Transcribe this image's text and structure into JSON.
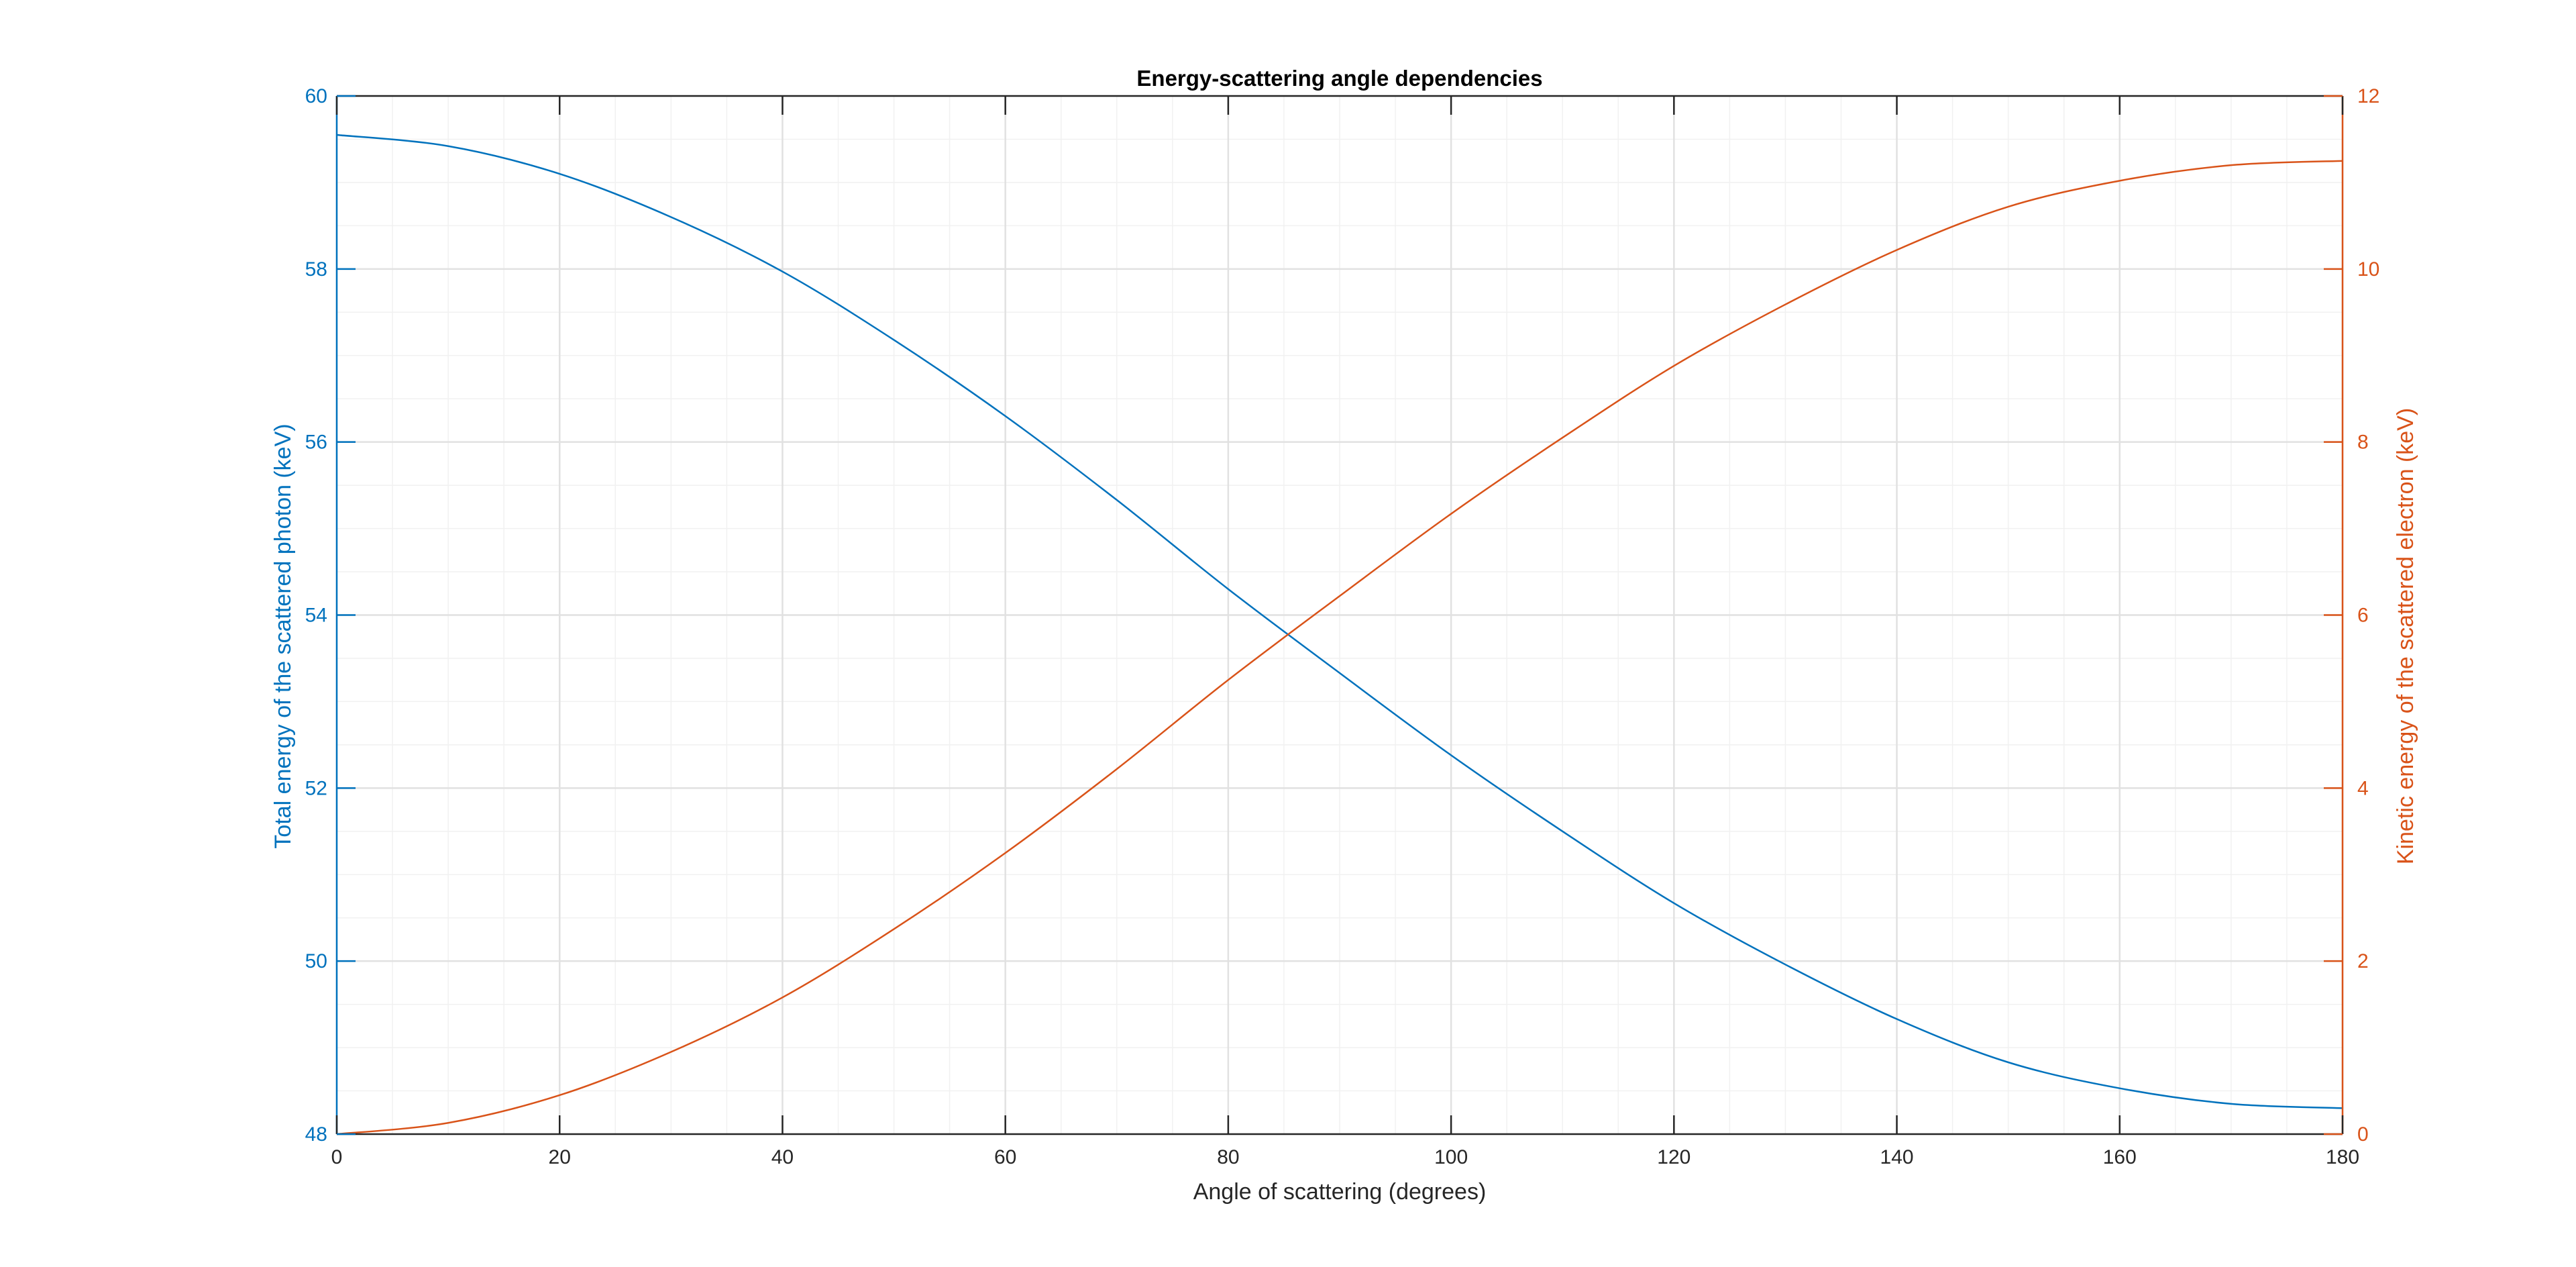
{
  "colors": {
    "left_axis": "#0072BD",
    "right_axis": "#D95319",
    "x_axis": "#262626",
    "grid": "#e1e1e1",
    "minor_grid": "#f1f1f1"
  },
  "chart_data": {
    "type": "line",
    "title": "Energy-scattering angle dependencies",
    "xlabel": "Angle of scattering (degrees)",
    "ylabel_left": "Total energy of the scattered photon (keV)",
    "ylabel_right": "Kinetic energy of the scattered electron (keV)",
    "xlim": [
      0,
      180
    ],
    "ylim_left": [
      48,
      60
    ],
    "ylim_right": [
      0,
      12
    ],
    "x_ticks": [
      0,
      20,
      40,
      60,
      80,
      100,
      120,
      140,
      160,
      180
    ],
    "y_ticks_left": [
      48,
      50,
      52,
      54,
      56,
      58,
      60
    ],
    "y_ticks_right": [
      0,
      2,
      4,
      6,
      8,
      10,
      12
    ],
    "grid": true,
    "minor_grid": true,
    "x": [
      0,
      10,
      20,
      30,
      40,
      50,
      60,
      70,
      80,
      90,
      100,
      110,
      120,
      130,
      140,
      150,
      160,
      170,
      180
    ],
    "series": [
      {
        "axis": "left",
        "color": "#0072BD",
        "values": [
          59.55,
          59.42,
          59.1,
          58.6,
          57.97,
          57.18,
          56.3,
          55.33,
          54.3,
          53.33,
          52.38,
          51.5,
          50.67,
          49.96,
          49.33,
          48.83,
          48.53,
          48.35,
          48.3
        ]
      },
      {
        "axis": "right",
        "color": "#D95319",
        "values": [
          0,
          0.13,
          0.45,
          0.95,
          1.58,
          2.37,
          3.25,
          4.22,
          5.25,
          6.22,
          7.17,
          8.05,
          8.88,
          9.59,
          10.22,
          10.72,
          11.02,
          11.2,
          11.25
        ]
      }
    ]
  }
}
